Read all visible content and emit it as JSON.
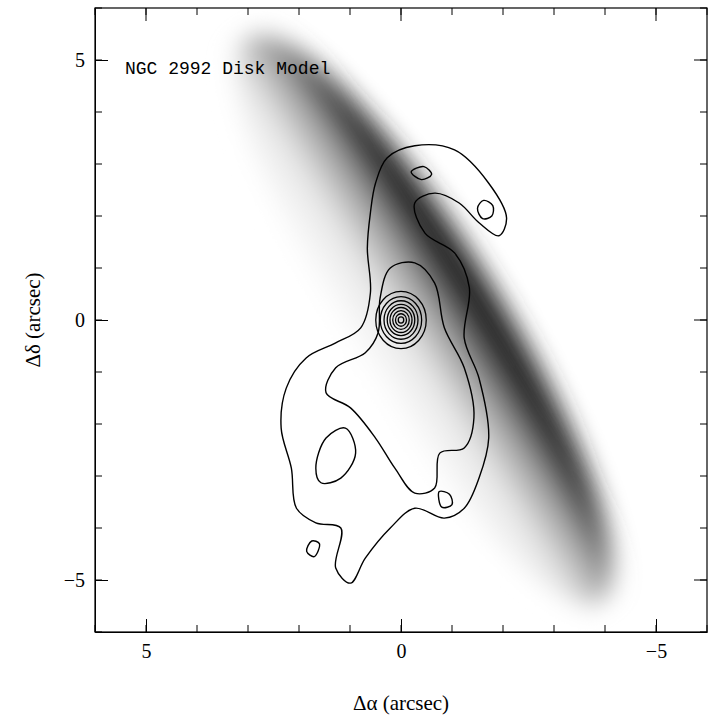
{
  "chart_data": {
    "type": "contour",
    "title": "NGC 2992 Disk Model",
    "x_label": "Δα (arcsec)",
    "y_label": "Δδ (arcsec)",
    "xlim": [
      6,
      -6
    ],
    "ylim": [
      -6,
      6
    ],
    "xticks": [
      {
        "value": 5,
        "label": "5"
      },
      {
        "value": 0,
        "label": "0"
      },
      {
        "value": -5,
        "label": "−5"
      }
    ],
    "yticks": [
      {
        "value": -5,
        "label": "−5"
      },
      {
        "value": 0,
        "label": "0"
      },
      {
        "value": 5,
        "label": "5"
      }
    ],
    "xticks_minor": [
      6,
      5,
      4,
      3,
      2,
      1,
      0,
      -1,
      -2,
      -3,
      -4,
      -5,
      -6
    ],
    "yticks_minor": [
      -6,
      -5,
      -4,
      -3,
      -2,
      -1,
      0,
      1,
      2,
      3,
      4,
      5,
      6
    ],
    "disk_model": {
      "center": [
        -0.45,
        0
      ],
      "semi_major": 6.4,
      "semi_minor": 1.5,
      "position_angle": 32
    },
    "nucleus": {
      "center": [
        0,
        0
      ],
      "radii": [
        0.06,
        0.12,
        0.18,
        0.24,
        0.3,
        0.37,
        0.45,
        0.55
      ]
    },
    "contours": [
      {
        "points": [
          [
            0.5,
            2.63
          ],
          [
            0.27,
            3.12
          ],
          [
            -0.27,
            3.35
          ],
          [
            -1.05,
            3.27
          ],
          [
            -1.72,
            2.63
          ],
          [
            -2.07,
            1.96
          ],
          [
            -1.92,
            1.62
          ],
          [
            -1.53,
            1.87
          ],
          [
            -1.14,
            2.25
          ],
          [
            -0.66,
            2.44
          ],
          [
            -0.27,
            2.25
          ],
          [
            -0.47,
            1.67
          ],
          [
            -1.05,
            1.29
          ],
          [
            -1.34,
            0.62
          ],
          [
            -1.24,
            -0.35
          ],
          [
            -1.53,
            -1.12
          ],
          [
            -1.72,
            -2.27
          ],
          [
            -1.53,
            -3.04
          ],
          [
            -1.24,
            -3.62
          ],
          [
            -0.85,
            -3.81
          ],
          [
            -0.27,
            -3.62
          ],
          [
            0.21,
            -4.0
          ],
          [
            0.7,
            -4.58
          ],
          [
            0.99,
            -5.06
          ],
          [
            1.28,
            -4.77
          ],
          [
            1.18,
            -4.0
          ],
          [
            1.67,
            -3.9
          ],
          [
            2.05,
            -3.62
          ],
          [
            2.15,
            -2.85
          ],
          [
            2.35,
            -2.08
          ],
          [
            2.25,
            -1.31
          ],
          [
            1.86,
            -0.73
          ],
          [
            1.28,
            -0.44
          ],
          [
            0.79,
            -0.15
          ],
          [
            0.6,
            0.52
          ],
          [
            0.66,
            1.38
          ],
          [
            0.6,
            2.06
          ]
        ]
      },
      {
        "points": [
          [
            0.41,
            0.42
          ],
          [
            0.21,
            1.0
          ],
          [
            -0.27,
            1.1
          ],
          [
            -0.66,
            0.71
          ],
          [
            -0.85,
            -0.15
          ],
          [
            -1.24,
            -0.92
          ],
          [
            -1.43,
            -1.88
          ],
          [
            -1.24,
            -2.46
          ],
          [
            -0.76,
            -2.56
          ],
          [
            -0.66,
            -3.23
          ],
          [
            -0.27,
            -3.33
          ],
          [
            0.12,
            -2.85
          ],
          [
            0.5,
            -2.27
          ],
          [
            0.99,
            -1.69
          ],
          [
            1.47,
            -1.4
          ],
          [
            1.28,
            -0.92
          ],
          [
            0.7,
            -0.63
          ],
          [
            0.45,
            -0.25
          ]
        ]
      },
      {
        "points": [
          [
            1.67,
            -2.85
          ],
          [
            1.47,
            -2.27
          ],
          [
            1.09,
            -2.08
          ],
          [
            0.89,
            -2.56
          ],
          [
            1.18,
            -3.04
          ],
          [
            1.57,
            -3.13
          ]
        ]
      },
      {
        "points": [
          [
            -1.5,
            2.15
          ],
          [
            -1.62,
            2.3
          ],
          [
            -1.8,
            2.2
          ],
          [
            -1.78,
            2.0
          ],
          [
            -1.6,
            1.95
          ]
        ]
      },
      {
        "points": [
          [
            -0.2,
            2.85
          ],
          [
            -0.45,
            2.95
          ],
          [
            -0.6,
            2.8
          ],
          [
            -0.4,
            2.7
          ]
        ]
      },
      {
        "points": [
          [
            1.6,
            -4.3
          ],
          [
            1.75,
            -4.25
          ],
          [
            1.85,
            -4.45
          ],
          [
            1.7,
            -4.55
          ]
        ]
      },
      {
        "points": [
          [
            -0.75,
            -3.3
          ],
          [
            -0.95,
            -3.35
          ],
          [
            -1.0,
            -3.55
          ],
          [
            -0.8,
            -3.6
          ]
        ]
      }
    ]
  }
}
